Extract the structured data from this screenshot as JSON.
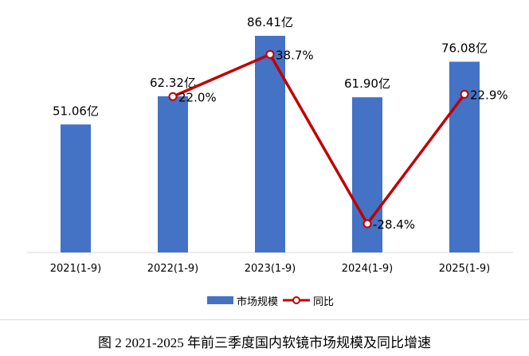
{
  "chart_data": {
    "type": "bar+line",
    "categories": [
      "2021(1-9)",
      "2022(1-9)",
      "2023(1-9)",
      "2024(1-9)",
      "2025(1-9)"
    ],
    "series": [
      {
        "name": "市场规模",
        "type": "bar",
        "values": [
          51.06,
          62.32,
          86.41,
          61.9,
          76.08
        ],
        "labels": [
          "51.06亿",
          "62.32亿",
          "86.41亿",
          "61.90亿",
          "76.08亿"
        ],
        "color": "#4472c4"
      },
      {
        "name": "同比",
        "type": "line",
        "values": [
          null,
          22.0,
          38.7,
          -28.4,
          22.9
        ],
        "labels": [
          "",
          "22.0%",
          "38.7%",
          "-28.4%",
          "22.9%"
        ],
        "color": "#c00000"
      }
    ],
    "legend": "bottom",
    "grid": false
  },
  "caption": "图  2 2021-2025 年前三季度国内软镜市场规模及同比增速"
}
